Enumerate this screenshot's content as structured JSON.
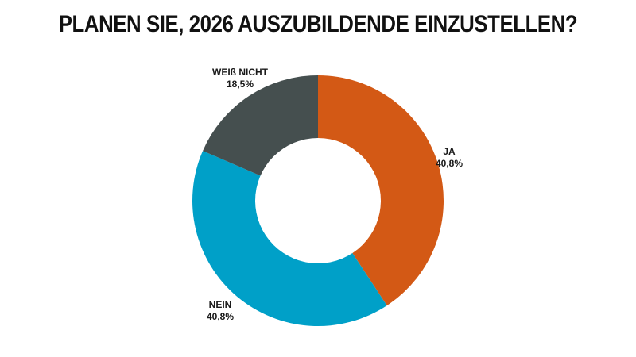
{
  "title": "PLANEN SIE, 2026 AUSZUBILDENDE EINZUSTELLEN?",
  "chart_data": {
    "type": "pie",
    "subtype": "donut",
    "title": "PLANEN SIE, 2026 AUSZUBILDENDE EINZUSTELLEN?",
    "categories": [
      "JA",
      "NEIN",
      "WEIß NICHT"
    ],
    "values": [
      40.8,
      40.8,
      18.5
    ],
    "value_labels": [
      "40,8%",
      "40,8%",
      "18,5%"
    ],
    "colors": [
      "#D35915",
      "#00A0C8",
      "#454F4F"
    ],
    "start_angle_deg": 0,
    "direction": "clockwise",
    "legend": "none (direct labels)"
  },
  "labels": {
    "ja": {
      "name": "JA",
      "value": "40,8%"
    },
    "nein": {
      "name": "NEIN",
      "value": "40,8%"
    },
    "weiss": {
      "name": "WEIß NICHT",
      "value": "18,5%"
    }
  }
}
